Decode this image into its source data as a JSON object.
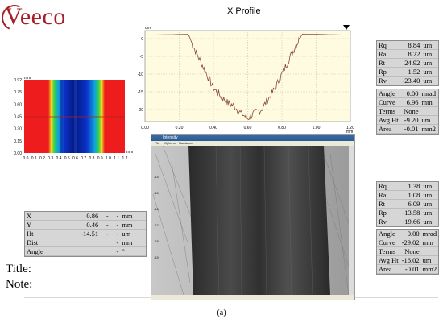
{
  "brand": {
    "name": "Veeco"
  },
  "profile": {
    "title": "X Profile",
    "unit_label": "um",
    "y_ticks": [
      "0",
      "-5",
      "-10",
      "-15",
      "-20"
    ],
    "x_ticks": [
      "0.00",
      "0.20",
      "0.40",
      "0.60",
      "0.80",
      "1.00",
      "1.20"
    ],
    "x_unit": "mm"
  },
  "heatmap": {
    "y_unit": "mm",
    "x_unit": "mm",
    "y_ticks": [
      "0.92",
      "0.75",
      "0.60",
      "0.45",
      "0.30",
      "0.15",
      "0.00"
    ],
    "x_ticks": [
      "0.0",
      "0.1",
      "0.2",
      "0.3",
      "0.4",
      "0.5",
      "0.6",
      "0.7",
      "0.8",
      "0.9",
      "1.0",
      "1.1",
      "1.2"
    ]
  },
  "stats_top": [
    {
      "label": "Rq",
      "value": "8.84",
      "unit": "um"
    },
    {
      "label": "Ra",
      "value": "8.22",
      "unit": "um"
    },
    {
      "label": "Rt",
      "value": "24.92",
      "unit": "um"
    },
    {
      "label": "Rp",
      "value": "1.52",
      "unit": "um"
    },
    {
      "label": "Rv",
      "value": "-23.40",
      "unit": "um"
    }
  ],
  "params_top": [
    {
      "label": "Angle",
      "value": "0.00",
      "unit": "mrad"
    },
    {
      "label": "Curve",
      "value": "6.96",
      "unit": "mm"
    },
    {
      "label": "Terms",
      "value": "None",
      "unit": ""
    },
    {
      "label": "Avg Ht",
      "value": "-9.20",
      "unit": "um"
    },
    {
      "label": "Area",
      "value": "-0.01",
      "unit": "mm2"
    }
  ],
  "stats_bottom": [
    {
      "label": "Rq",
      "value": "1.38",
      "unit": "um"
    },
    {
      "label": "Ra",
      "value": "1.08",
      "unit": "um"
    },
    {
      "label": "Rt",
      "value": "6.09",
      "unit": "um"
    },
    {
      "label": "Rp",
      "value": "-13.58",
      "unit": "um"
    },
    {
      "label": "Rv",
      "value": "-19.66",
      "unit": "um"
    }
  ],
  "params_bottom": [
    {
      "label": "Angle",
      "value": "0.00",
      "unit": "mrad"
    },
    {
      "label": "Curve",
      "value": "-29.02",
      "unit": "mm"
    },
    {
      "label": "Terms",
      "value": "None",
      "unit": ""
    },
    {
      "label": "Avg Ht",
      "value": "-16.02",
      "unit": "um"
    },
    {
      "label": "Area",
      "value": "-0.01",
      "unit": "mm2"
    }
  ],
  "cursor": [
    {
      "label": "X",
      "v1": "0.86",
      "v2": "-",
      "v3": "-",
      "unit": "mm"
    },
    {
      "label": "Y",
      "v1": "0.46",
      "v2": "-",
      "v3": "-",
      "unit": "mm"
    },
    {
      "label": "Ht",
      "v1": "-14.51",
      "v2": "-",
      "v3": "-",
      "unit": "um"
    },
    {
      "label": "Dist",
      "v1": "",
      "v2": "",
      "v3": "-",
      "unit": "mm"
    },
    {
      "label": "Angle",
      "v1": "",
      "v2": "",
      "v3": "-",
      "unit": "°"
    }
  ],
  "notes": {
    "title_label": "Title:",
    "note_label": "Note:"
  },
  "micro": {
    "window_title": "Intensity",
    "menu": [
      "File",
      "Options",
      "Hardware"
    ],
    "y_ticks": [
      "-14",
      "-15",
      "-16",
      "-17",
      "-18",
      "-19"
    ]
  },
  "caption": "(a)"
}
